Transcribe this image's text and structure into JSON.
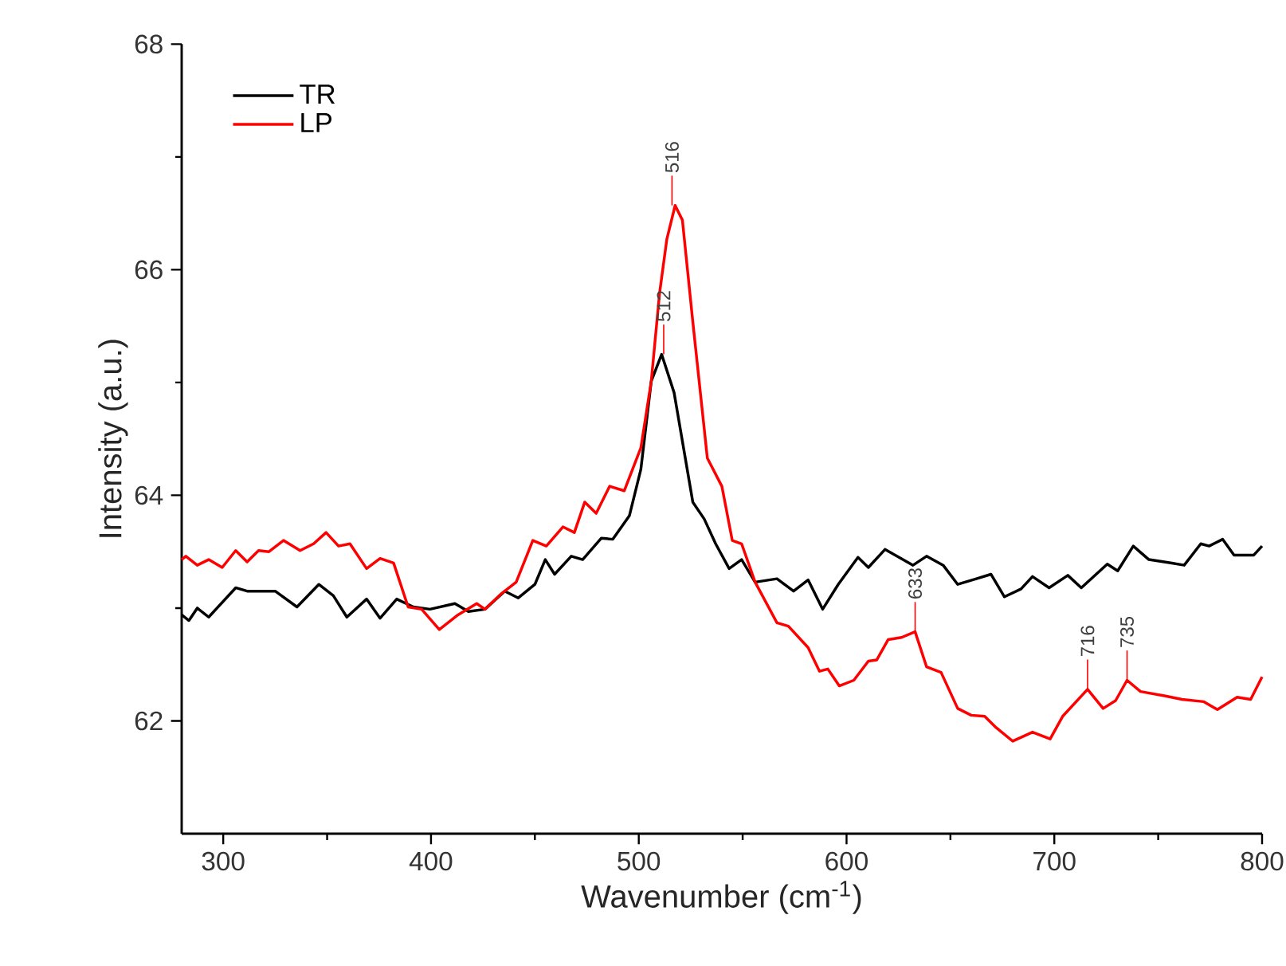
{
  "chart_data": {
    "type": "line",
    "xlabel": "Wavenumber (cm$^{-1}$)",
    "ylabel": "Intensity (a.u.)",
    "xlim": [
      280,
      800
    ],
    "ylim": [
      61,
      68
    ],
    "xticks": [
      300,
      400,
      500,
      600,
      700,
      800
    ],
    "yticks": [
      62,
      64,
      66,
      68
    ],
    "legend": "top left",
    "series": [
      {
        "name": "TR",
        "color": "#000000",
        "x": [
          280,
          283.5,
          287.5,
          293,
          306,
          311.5,
          325,
          335.5,
          346,
          353,
          359.5,
          369,
          375.5,
          383.5,
          391.5,
          399.5,
          411.5,
          418,
          426,
          435.5,
          442,
          450,
          455,
          459.5,
          467.5,
          473,
          482,
          487.5,
          495.5,
          501,
          506,
          511,
          517,
          526,
          531.5,
          537,
          543.5,
          549.5,
          556,
          566.5,
          574.5,
          581.5,
          588.5,
          596,
          605.5,
          610.5,
          618.5,
          632,
          638.5,
          646.5,
          653.5,
          662.5,
          669.5,
          676,
          684,
          689.5,
          697.5,
          706.5,
          713,
          725.5,
          730.5,
          738,
          745.5,
          756,
          762.5,
          770.5,
          774.5,
          781,
          786.5,
          796,
          800
        ],
        "values": [
          62.94,
          62.89,
          63.0,
          62.92,
          63.18,
          63.15,
          63.15,
          63.01,
          63.21,
          63.11,
          62.92,
          63.08,
          62.91,
          63.08,
          63.01,
          62.99,
          63.04,
          62.97,
          62.99,
          63.15,
          63.09,
          63.21,
          63.43,
          63.3,
          63.46,
          63.43,
          63.62,
          63.61,
          63.82,
          64.23,
          65.01,
          65.25,
          64.91,
          63.94,
          63.79,
          63.57,
          63.35,
          63.43,
          63.23,
          63.26,
          63.15,
          63.25,
          62.99,
          63.21,
          63.45,
          63.36,
          63.52,
          63.38,
          63.46,
          63.38,
          63.21,
          63.26,
          63.3,
          63.1,
          63.17,
          63.28,
          63.18,
          63.29,
          63.18,
          63.39,
          63.33,
          63.55,
          63.43,
          63.4,
          63.38,
          63.57,
          63.55,
          63.61,
          63.47,
          63.47,
          63.55
        ]
      },
      {
        "name": "LP",
        "color": "#ff0000",
        "x": [
          280,
          282,
          287.5,
          293,
          299.5,
          306,
          311.5,
          317,
          322,
          329,
          337,
          343.5,
          349.5,
          355.5,
          361,
          369,
          375.5,
          382,
          389,
          395.5,
          404,
          413,
          422,
          426,
          434,
          441,
          449,
          455.5,
          463.5,
          469,
          474,
          479.5,
          486,
          493,
          501,
          506,
          510,
          513.5,
          517.5,
          521,
          526,
          533,
          540,
          545,
          549.5,
          556,
          566.5,
          572,
          581.5,
          587,
          591,
          596.5,
          603.5,
          610.5,
          614.5,
          620,
          626.5,
          633,
          638.5,
          645.5,
          653.5,
          660,
          666.5,
          672,
          680,
          689.5,
          698,
          704,
          716,
          723.5,
          729.5,
          735,
          741.5,
          753.5,
          761.5,
          772,
          778.5,
          788,
          794.5,
          800
        ],
        "values": [
          63.43,
          63.46,
          63.38,
          63.43,
          63.36,
          63.51,
          63.41,
          63.51,
          63.5,
          63.6,
          63.51,
          63.57,
          63.67,
          63.55,
          63.57,
          63.35,
          63.44,
          63.4,
          63.01,
          62.99,
          62.81,
          62.94,
          63.04,
          62.99,
          63.13,
          63.23,
          63.6,
          63.55,
          63.72,
          63.67,
          63.94,
          63.84,
          64.08,
          64.04,
          64.42,
          65.01,
          65.79,
          66.27,
          66.57,
          66.44,
          65.54,
          64.33,
          64.08,
          63.6,
          63.57,
          63.23,
          62.87,
          62.84,
          62.65,
          62.44,
          62.46,
          62.31,
          62.36,
          62.53,
          62.54,
          62.72,
          62.74,
          62.79,
          62.48,
          62.43,
          62.11,
          62.05,
          62.04,
          61.94,
          61.82,
          61.9,
          61.84,
          62.04,
          62.28,
          62.11,
          62.18,
          62.36,
          62.26,
          62.22,
          62.19,
          62.17,
          62.1,
          62.21,
          62.19,
          62.39
        ]
      }
    ],
    "annotations": [
      {
        "text": "512",
        "x": 512,
        "y": 65.25
      },
      {
        "text": "516",
        "x": 516,
        "y": 66.57
      },
      {
        "text": "633",
        "x": 633,
        "y": 62.79
      },
      {
        "text": "716",
        "x": 716,
        "y": 62.28
      },
      {
        "text": "735",
        "x": 735,
        "y": 62.36
      }
    ]
  }
}
